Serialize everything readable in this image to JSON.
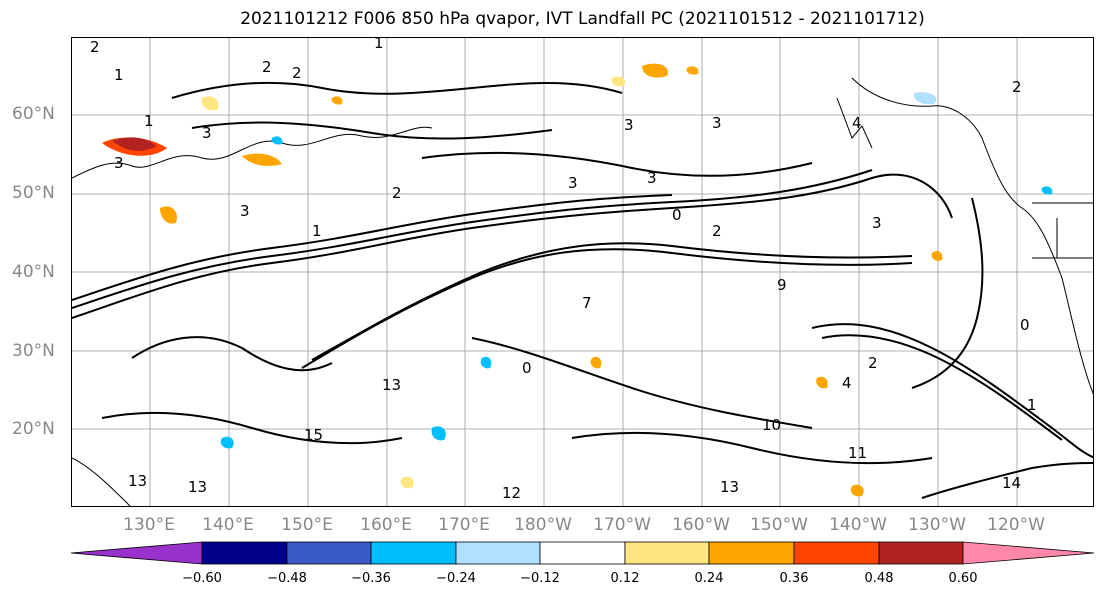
{
  "title": "2021101212 F006 850 hPa qvapor, IVT Landfall PC (2021101512 - 2021101712)",
  "lat_labels": [
    "60°N",
    "50°N",
    "40°N",
    "30°N",
    "20°N"
  ],
  "lon_labels": [
    "130°E",
    "140°E",
    "150°E",
    "160°E",
    "170°E",
    "180°W",
    "170°W",
    "160°W",
    "150°W",
    "140°W",
    "130°W",
    "120°W"
  ],
  "colorbar": {
    "ticks": [
      "−0.60",
      "−0.48",
      "−0.36",
      "−0.24",
      "−0.12",
      "0.12",
      "0.24",
      "0.36",
      "0.48",
      "0.60"
    ],
    "colors": [
      "#9932cc",
      "#00008b",
      "#3a5bc7",
      "#00bfff",
      "#b0e0ff",
      "#ffffff",
      "#ffe680",
      "#ffa500",
      "#ff4500",
      "#b22222",
      "#ff88aa"
    ]
  },
  "contour_labels": [
    "2",
    "1",
    "1",
    "1",
    "2",
    "2",
    "3",
    "3",
    "3",
    "3",
    "2",
    "4",
    "2",
    "3",
    "3",
    "1",
    "2",
    "3",
    "9",
    "0",
    "13",
    "15",
    "13",
    "12",
    "13",
    "14",
    "13",
    "3",
    "4",
    "11",
    "2",
    "7",
    "1",
    "0",
    "0",
    "10"
  ]
}
